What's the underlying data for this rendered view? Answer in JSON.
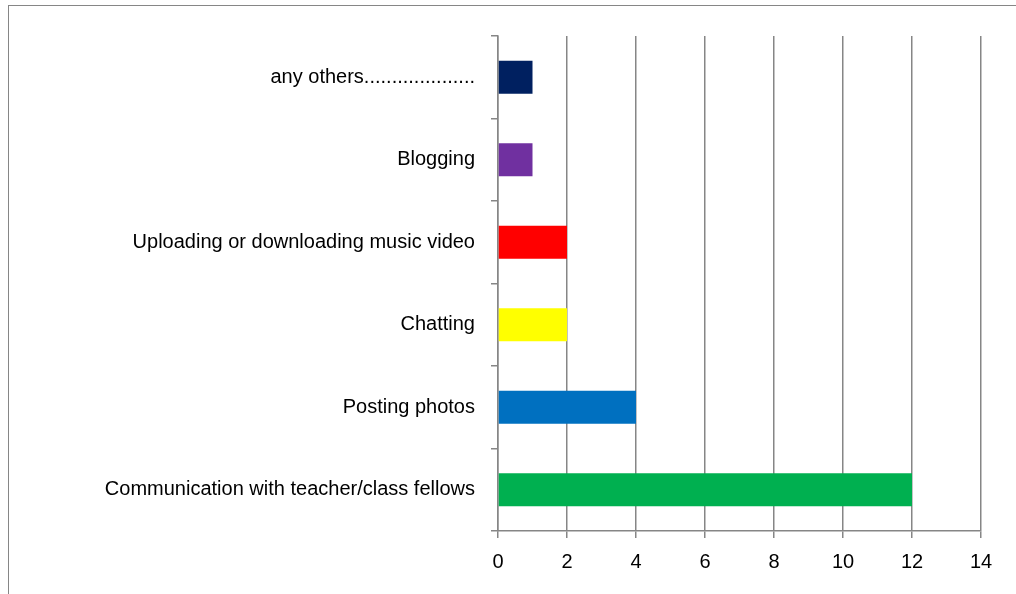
{
  "chart_data": {
    "type": "bar",
    "orientation": "horizontal",
    "categories": [
      "any others....................",
      "Blogging",
      "Uploading or downloading music video",
      "Chatting",
      "Posting photos",
      "Communication with teacher/class fellows"
    ],
    "values": [
      1,
      1,
      2,
      2,
      4,
      12
    ],
    "colors": [
      "#002060",
      "#7030a0",
      "#ff0000",
      "#ffff00",
      "#0070c0",
      "#00b050"
    ],
    "xlim": [
      0,
      14
    ],
    "xticks": [
      0,
      2,
      4,
      6,
      8,
      10,
      12,
      14
    ],
    "grid": "x"
  }
}
